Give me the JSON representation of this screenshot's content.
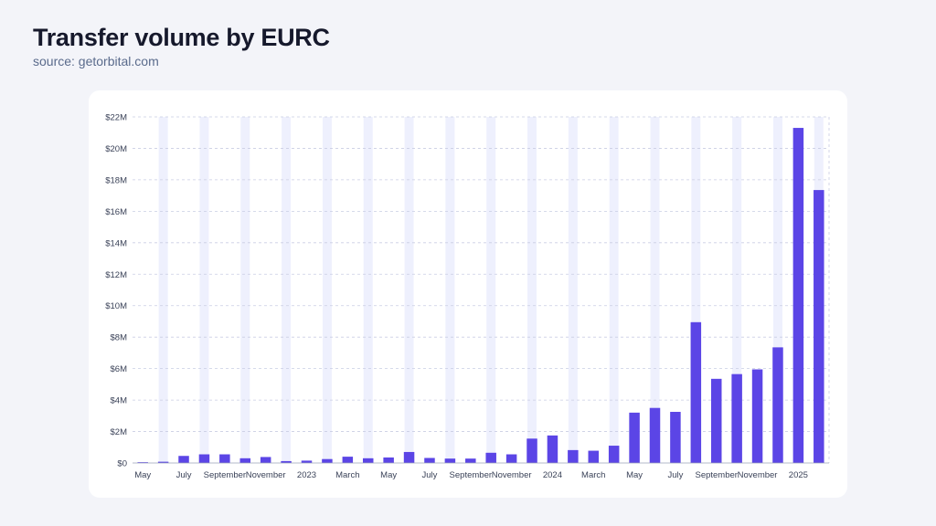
{
  "header": {
    "title": "Transfer volume by EURC",
    "subtitle": "source: getorbital.com"
  },
  "colors": {
    "bar": "#5b45e6",
    "column_band": "#eef0fd",
    "grid": "#c9cde3",
    "background": "#f3f4f9",
    "card": "#ffffff"
  },
  "chart_data": {
    "type": "bar",
    "title": "Transfer volume by EURC",
    "xlabel": "",
    "ylabel": "",
    "ylim": [
      0,
      22000000
    ],
    "yticks": [
      0,
      2000000,
      4000000,
      6000000,
      8000000,
      10000000,
      12000000,
      14000000,
      16000000,
      18000000,
      20000000,
      22000000
    ],
    "ytick_labels": [
      "$0",
      "$2M",
      "$4M",
      "$6M",
      "$8M",
      "$10M",
      "$12M",
      "$14M",
      "$16M",
      "$18M",
      "$20M",
      "$22M"
    ],
    "grid": true,
    "categories": [
      "2022-05",
      "2022-06",
      "2022-07",
      "2022-08",
      "2022-09",
      "2022-10",
      "2022-11",
      "2022-12",
      "2023-01",
      "2023-02",
      "2023-03",
      "2023-04",
      "2023-05",
      "2023-06",
      "2023-07",
      "2023-08",
      "2023-09",
      "2023-10",
      "2023-11",
      "2023-12",
      "2024-01",
      "2024-02",
      "2024-03",
      "2024-04",
      "2024-05",
      "2024-06",
      "2024-07",
      "2024-08",
      "2024-09",
      "2024-10",
      "2024-11",
      "2024-12",
      "2025-01",
      "2025-02"
    ],
    "x_tick_labels": [
      {
        "index": 0,
        "label": "May"
      },
      {
        "index": 2,
        "label": "July"
      },
      {
        "index": 4,
        "label": "September"
      },
      {
        "index": 6,
        "label": "November"
      },
      {
        "index": 8,
        "label": "2023"
      },
      {
        "index": 10,
        "label": "March"
      },
      {
        "index": 12,
        "label": "May"
      },
      {
        "index": 14,
        "label": "July"
      },
      {
        "index": 16,
        "label": "September"
      },
      {
        "index": 18,
        "label": "November"
      },
      {
        "index": 20,
        "label": "2024"
      },
      {
        "index": 22,
        "label": "March"
      },
      {
        "index": 24,
        "label": "May"
      },
      {
        "index": 26,
        "label": "July"
      },
      {
        "index": 28,
        "label": "September"
      },
      {
        "index": 30,
        "label": "November"
      },
      {
        "index": 32,
        "label": "2025"
      }
    ],
    "values": [
      50000,
      80000,
      450000,
      550000,
      550000,
      300000,
      380000,
      120000,
      150000,
      250000,
      400000,
      300000,
      350000,
      700000,
      320000,
      280000,
      280000,
      650000,
      550000,
      1550000,
      1750000,
      820000,
      780000,
      1100000,
      3200000,
      3500000,
      3250000,
      8950000,
      5350000,
      5650000,
      5950000,
      7350000,
      21300000,
      17350000
    ]
  }
}
